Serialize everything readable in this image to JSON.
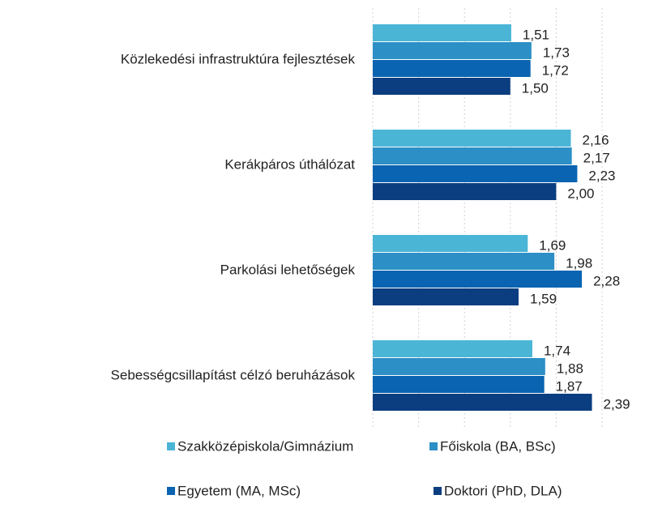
{
  "chart_data": {
    "type": "barh",
    "categories": [
      "Közlekedési infrastruktúra fejlesztések",
      "Kerákpáros úthálózat",
      "Parkolási lehetőségek",
      "Sebességcsillapítást célzó beruházások"
    ],
    "series": [
      {
        "name": "Szakközépiskola/Gimnázium",
        "color": "#4bb5d6",
        "values": [
          1.51,
          2.16,
          1.69,
          1.74
        ],
        "value_labels": [
          "1,51",
          "2,16",
          "1,69",
          "1,74"
        ]
      },
      {
        "name": "Főiskola (BA, BSc)",
        "color": "#2c8fc6",
        "values": [
          1.73,
          2.17,
          1.98,
          1.88
        ],
        "value_labels": [
          "1,73",
          "2,17",
          "1,98",
          "1,88"
        ]
      },
      {
        "name": "Egyetem (MA, MSc)",
        "color": "#0b64b1",
        "values": [
          1.72,
          2.23,
          2.28,
          1.87
        ],
        "value_labels": [
          "1,72",
          "2,23",
          "2,28",
          "1,87"
        ]
      },
      {
        "name": "Doktori (PhD, DLA)",
        "color": "#0b3e80",
        "values": [
          1.5,
          2.0,
          1.59,
          2.39
        ],
        "value_labels": [
          "1,50",
          "2,00",
          "1,59",
          "2,39"
        ]
      }
    ],
    "xlim": [
      0,
      2.5
    ],
    "xticks": [
      0,
      0.5,
      1,
      1.5,
      2,
      2.5
    ],
    "grid": true,
    "legend": "bottom"
  }
}
